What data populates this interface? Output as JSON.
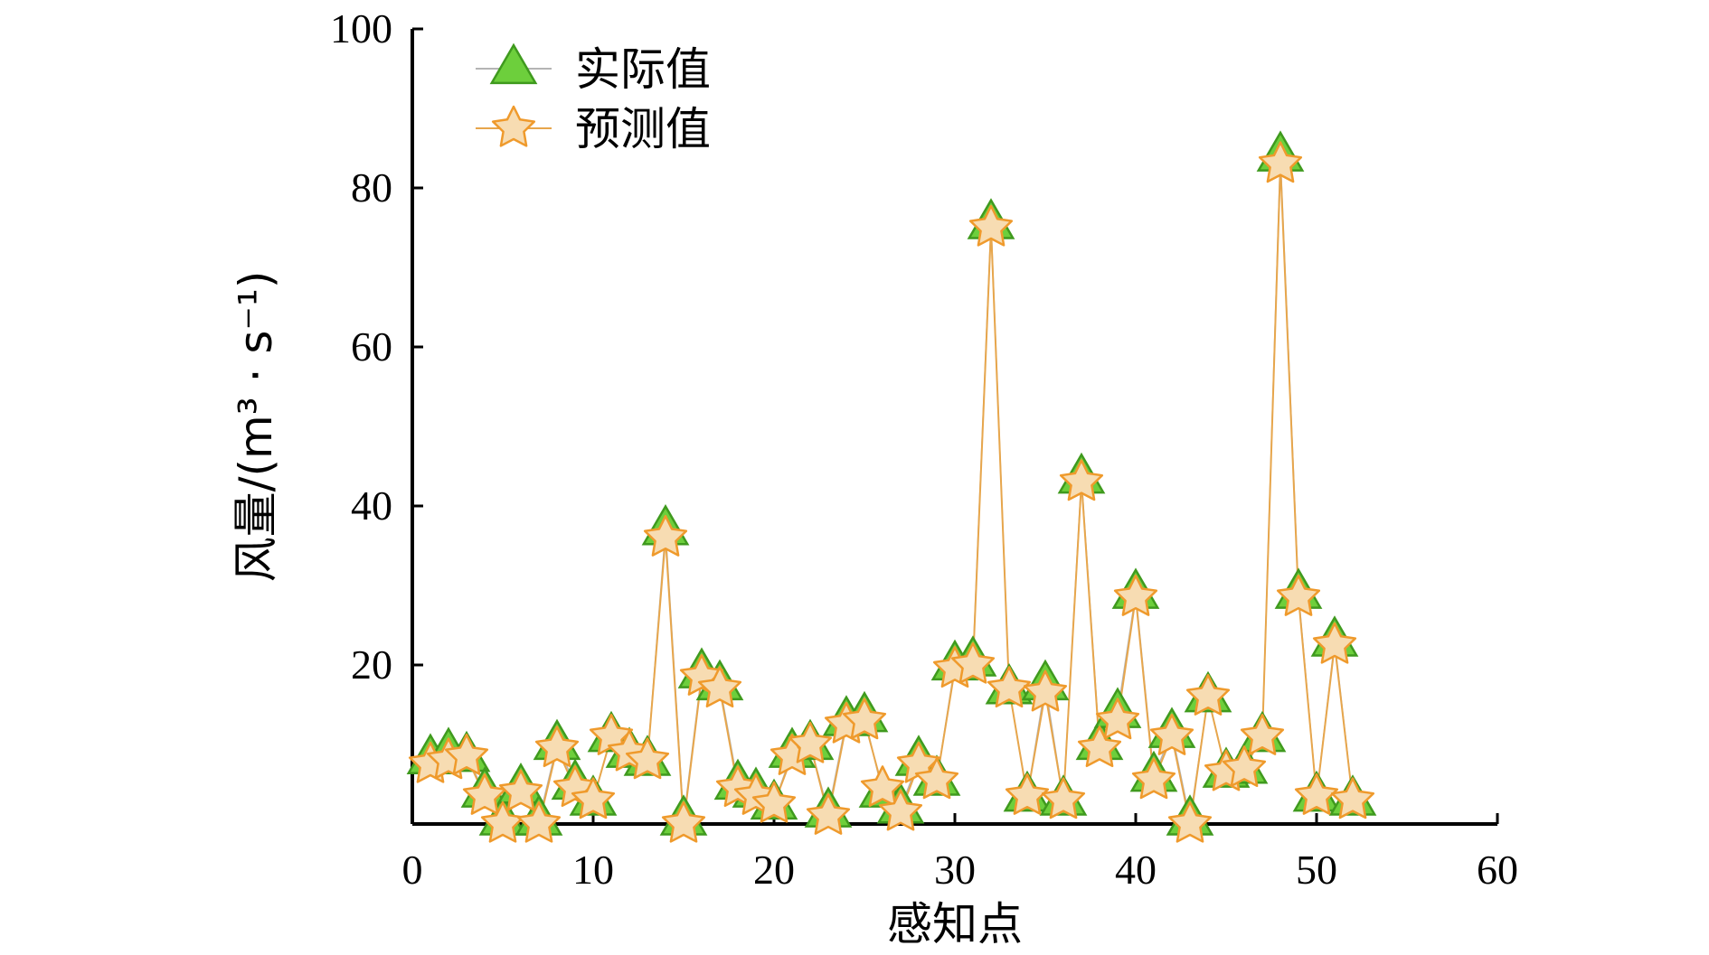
{
  "chart_data": {
    "type": "line",
    "xlabel": "感知点",
    "ylabel": "风量/(m³ · s⁻¹)",
    "xlim": [
      0,
      60
    ],
    "ylim": [
      0,
      100
    ],
    "xticks": [
      0,
      10,
      20,
      30,
      40,
      50,
      60
    ],
    "yticks": [
      20,
      40,
      60,
      80,
      100
    ],
    "grid": false,
    "legend_position": "top-left",
    "x": [
      1,
      2,
      3,
      4,
      5,
      6,
      7,
      8,
      9,
      10,
      11,
      12,
      13,
      14,
      15,
      16,
      17,
      18,
      19,
      20,
      21,
      22,
      23,
      24,
      25,
      26,
      27,
      28,
      29,
      30,
      31,
      32,
      33,
      34,
      35,
      36,
      37,
      38,
      39,
      40,
      41,
      42,
      43,
      44,
      45,
      46,
      47,
      48,
      49,
      50,
      51,
      52
    ],
    "series": [
      {
        "name": "实际值",
        "marker": "triangle",
        "color": "#6dcf3c",
        "edge_color": "#3f9a1e",
        "line_color": "#b4b4b4",
        "values": [
          8.2,
          9.0,
          8.5,
          4.0,
          0.5,
          4.5,
          0.5,
          10.0,
          5.0,
          3.0,
          11.0,
          9.0,
          8.0,
          37.0,
          0.5,
          19.0,
          17.5,
          5.0,
          4.0,
          2.5,
          9.0,
          10.0,
          1.5,
          13.0,
          13.5,
          4.0,
          2.0,
          8.0,
          5.5,
          20.0,
          20.5,
          75.5,
          17.0,
          3.5,
          17.5,
          3.0,
          43.5,
          10.0,
          14.0,
          29.0,
          6.0,
          11.5,
          0.5,
          16.0,
          6.5,
          7.0,
          11.0,
          84.0,
          29.0,
          3.5,
          23.0,
          3.0
        ]
      },
      {
        "name": "预测值",
        "marker": "star",
        "color": "#f7dcb2",
        "edge_color": "#ef9a2c",
        "line_color": "#e7a64c",
        "values": [
          7.5,
          8.0,
          8.5,
          3.5,
          0.0,
          4.0,
          0.0,
          9.5,
          4.5,
          3.0,
          11.0,
          9.0,
          8.0,
          36.0,
          0.0,
          18.5,
          17.0,
          4.5,
          3.5,
          2.5,
          8.5,
          10.0,
          1.0,
          12.5,
          13.0,
          4.5,
          1.5,
          7.5,
          5.5,
          19.5,
          20.0,
          75.0,
          17.0,
          3.5,
          16.5,
          3.0,
          43.0,
          9.5,
          13.0,
          28.5,
          5.5,
          11.0,
          0.0,
          16.0,
          6.5,
          7.0,
          11.0,
          83.0,
          28.5,
          3.5,
          22.5,
          3.0
        ]
      }
    ]
  }
}
